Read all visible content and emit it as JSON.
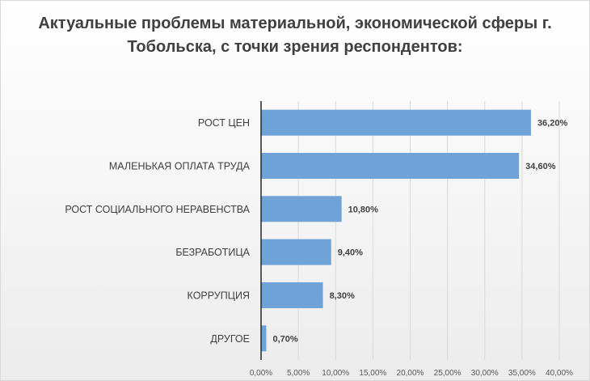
{
  "chart_data": {
    "type": "bar",
    "orientation": "horizontal",
    "title": "Актуальные проблемы материальной, экономической сферы г. Тобольска, с точки зрения респондентов:",
    "categories": [
      "РОСТ ЦЕН",
      "МАЛЕНЬКАЯ ОПЛАТА ТРУДА",
      "РОСТ СОЦИАЛЬНОГО НЕРАВЕНСТВА",
      "БЕЗРАБОТИЦА",
      "КОРРУПЦИЯ",
      "ДРУГОЕ"
    ],
    "values": [
      36.2,
      34.6,
      10.8,
      9.4,
      8.3,
      0.7
    ],
    "value_labels": [
      "36,20%",
      "34,60%",
      "10,80%",
      "9,40%",
      "8,30%",
      "0,70%"
    ],
    "xlim": [
      0,
      40
    ],
    "xticks": [
      0,
      5,
      10,
      15,
      20,
      25,
      30,
      35,
      40
    ],
    "xtick_labels": [
      "0,00%",
      "5,00%",
      "10,00%",
      "15,00%",
      "20,00%",
      "25,00%",
      "30,00%",
      "35,00%",
      "40,00%"
    ],
    "grid": true,
    "legend": "none",
    "bar_color": "#6fa3d8"
  }
}
